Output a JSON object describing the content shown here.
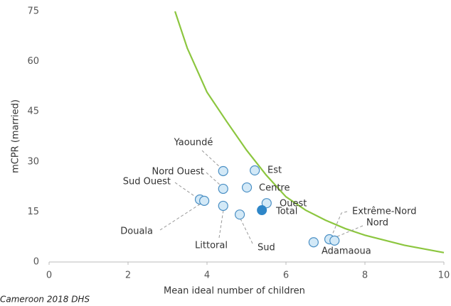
{
  "chart_data": {
    "type": "scatter",
    "xlabel": "Mean ideal number of children",
    "ylabel": "mCPR (married)",
    "source": "Cameroon 2018 DHS",
    "xlim": [
      0,
      10
    ],
    "xticks": [
      0,
      2,
      4,
      6,
      8,
      10
    ],
    "ylim": [
      0,
      75
    ],
    "yticks": [
      0,
      15,
      30,
      45,
      60,
      75
    ],
    "point_color": "#d3e9f7",
    "point_edge": "#4a8fc4",
    "highlight_color": "#2e86c8",
    "points": [
      {
        "label": "Yaoundé",
        "x": 4.41,
        "y": 27.2
      },
      {
        "label": "Est",
        "x": 5.21,
        "y": 27.4
      },
      {
        "label": "Nord Ouest",
        "x": 4.41,
        "y": 21.9
      },
      {
        "label": "Centre",
        "x": 5.01,
        "y": 22.3
      },
      {
        "label": "Sud Ouest",
        "x": 3.82,
        "y": 18.7
      },
      {
        "label": "Douala",
        "x": 3.93,
        "y": 18.3
      },
      {
        "label": "Ouest",
        "x": 5.51,
        "y": 17.6
      },
      {
        "label": "Littoral",
        "x": 4.41,
        "y": 16.8
      },
      {
        "label": "Sud",
        "x": 4.83,
        "y": 14.2
      },
      {
        "label": "Adamaoua",
        "x": 6.7,
        "y": 5.9
      },
      {
        "label": "Extrême-Nord",
        "x": 7.1,
        "y": 6.8
      },
      {
        "label": "Nord",
        "x": 7.23,
        "y": 6.4
      }
    ],
    "total": {
      "label": "Total",
      "x": 5.39,
      "y": 15.5
    },
    "curve": {
      "color": "#8cc63f",
      "x": [
        3.19,
        3.5,
        4,
        4.5,
        5,
        5.5,
        6,
        6.5,
        7,
        7.5,
        8,
        9,
        10
      ],
      "y": [
        75,
        64,
        50.8,
        42,
        33.5,
        26,
        19.5,
        15.5,
        12.5,
        10,
        8,
        5,
        2.8
      ]
    }
  }
}
